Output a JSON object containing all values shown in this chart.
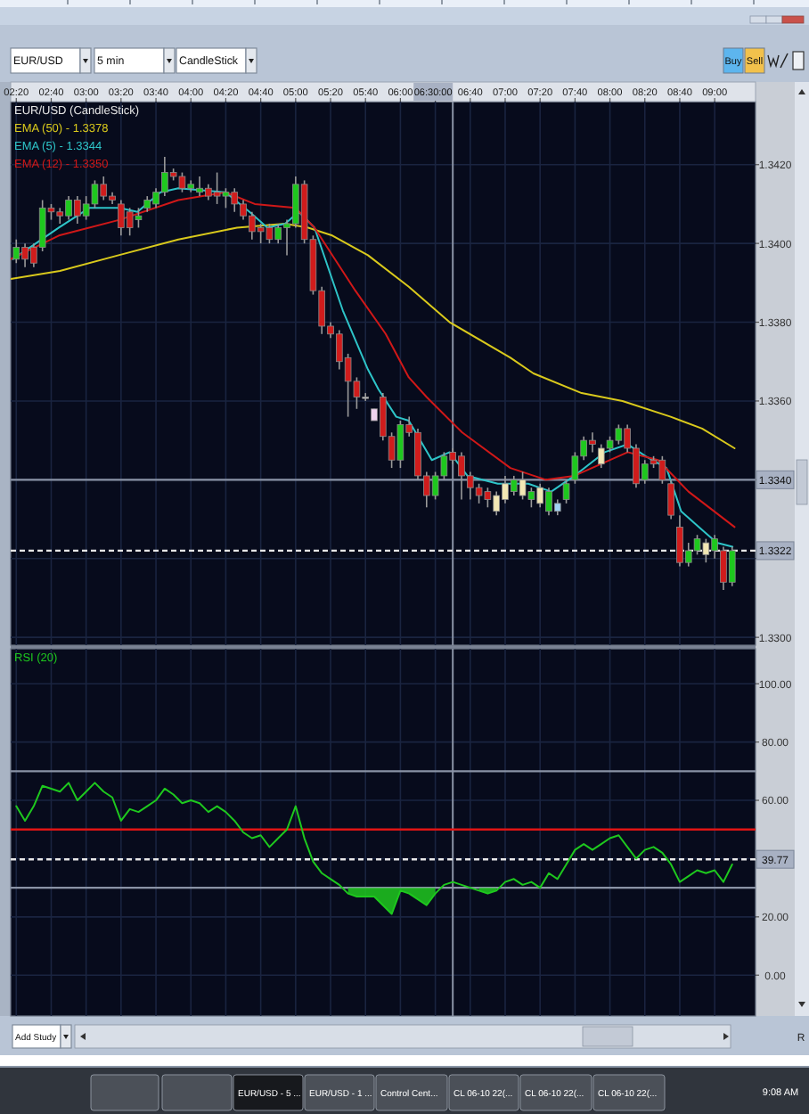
{
  "chart_data": [
    {
      "type": "candlestick",
      "legend_title": "EUR/USD (CandleStick)",
      "legend": "top left",
      "grid": true,
      "xlim": [
        2.28,
        9.39
      ],
      "ylim": [
        1.3298,
        1.3436
      ],
      "xticks": [
        {
          "value": 2.3333,
          "label": "02:20"
        },
        {
          "value": 2.6667,
          "label": "02:40"
        },
        {
          "value": 3,
          "label": "03:00"
        },
        {
          "value": 3.3333,
          "label": "03:20"
        },
        {
          "value": 3.6667,
          "label": "03:40"
        },
        {
          "value": 4,
          "label": "04:00"
        },
        {
          "value": 4.3333,
          "label": "04:20"
        },
        {
          "value": 4.6667,
          "label": "04:40"
        },
        {
          "value": 5,
          "label": "05:00"
        },
        {
          "value": 5.3333,
          "label": "05:20"
        },
        {
          "value": 5.6667,
          "label": "05:40"
        },
        {
          "value": 6,
          "label": "06:00"
        },
        {
          "value": 6.3333,
          "label": null
        },
        {
          "value": 6.6667,
          "label": "06:40"
        },
        {
          "value": 7,
          "label": "07:00"
        },
        {
          "value": 7.3333,
          "label": "07:20"
        },
        {
          "value": 7.6667,
          "label": "07:40"
        },
        {
          "value": 8,
          "label": "08:00"
        },
        {
          "value": 8.3333,
          "label": "08:20"
        },
        {
          "value": 8.6667,
          "label": "08:40"
        },
        {
          "value": 9,
          "label": "09:00"
        }
      ],
      "yticks": [
        {
          "value": 1.342,
          "label": "1.3420"
        },
        {
          "value": 1.34,
          "label": "1.3400"
        },
        {
          "value": 1.338,
          "label": "1.3380"
        },
        {
          "value": 1.336,
          "label": "1.3360"
        },
        {
          "value": 1.334,
          "label": null
        },
        {
          "value": 1.332,
          "label": null
        },
        {
          "value": 1.33,
          "label": "1.3300"
        }
      ],
      "x": [
        2.3333,
        2.4167,
        2.5,
        2.5833,
        2.6667,
        2.75,
        2.8333,
        2.9167,
        3,
        3.0833,
        3.1667,
        3.25,
        3.3333,
        3.4167,
        3.5,
        3.5833,
        3.6667,
        3.75,
        3.8333,
        3.9167,
        4,
        4.0833,
        4.1667,
        4.25,
        4.3333,
        4.4167,
        4.5,
        4.5833,
        4.6667,
        4.75,
        4.8333,
        4.9167,
        5,
        5.0833,
        5.1667,
        5.25,
        5.3333,
        5.4167,
        5.5,
        5.5833,
        5.6667,
        5.75,
        5.8333,
        5.9167,
        6,
        6.0833,
        6.1667,
        6.25,
        6.3333,
        6.4167,
        6.5,
        6.5833,
        6.6667,
        6.75,
        6.8333,
        6.9167,
        7,
        7.0833,
        7.1667,
        7.25,
        7.3333,
        7.4167,
        7.5,
        7.5833,
        7.6667,
        7.75,
        7.8333,
        7.9167,
        8,
        8.0833,
        8.1667,
        8.25,
        8.3333,
        8.4167,
        8.5,
        8.5833,
        8.6667,
        8.75,
        8.8333,
        8.9167,
        9,
        9.0833,
        9.1667
      ],
      "ohlc": [
        [
          1.3396,
          1.3401,
          1.3395,
          1.3399
        ],
        [
          1.3399,
          1.34,
          1.3394,
          1.3396
        ],
        [
          1.3399,
          1.34,
          1.3394,
          1.3395
        ],
        [
          1.3399,
          1.3411,
          1.3398,
          1.3409
        ],
        [
          1.3409,
          1.341,
          1.3406,
          1.3408
        ],
        [
          1.3408,
          1.3409,
          1.3405,
          1.3407
        ],
        [
          1.3407,
          1.3412,
          1.3406,
          1.3411
        ],
        [
          1.3411,
          1.3412,
          1.3405,
          1.3407
        ],
        [
          1.3407,
          1.3412,
          1.3406,
          1.341
        ],
        [
          1.341,
          1.3416,
          1.3409,
          1.3415
        ],
        [
          1.3415,
          1.3417,
          1.3411,
          1.3412
        ],
        [
          1.3412,
          1.3413,
          1.341,
          1.3411
        ],
        [
          1.341,
          1.3411,
          1.3402,
          1.3404
        ],
        [
          1.3408,
          1.3409,
          1.3402,
          1.3404
        ],
        [
          1.3406,
          1.3409,
          1.3404,
          1.3407
        ],
        [
          1.3409,
          1.3412,
          1.3408,
          1.3411
        ],
        [
          1.341,
          1.3414,
          1.3409,
          1.3413
        ],
        [
          1.3413,
          1.3422,
          1.3412,
          1.3418
        ],
        [
          1.3418,
          1.3419,
          1.3416,
          1.3417
        ],
        [
          1.3417,
          1.3418,
          1.3413,
          1.3414
        ],
        [
          1.3414,
          1.3416,
          1.3413,
          1.3415
        ],
        [
          1.3413,
          1.3417,
          1.3412,
          1.3414
        ],
        [
          1.3414,
          1.3415,
          1.3411,
          1.3412
        ],
        [
          1.3413,
          1.3418,
          1.341,
          1.3412
        ],
        [
          1.3412,
          1.3414,
          1.3409,
          1.3413
        ],
        [
          1.3413,
          1.3414,
          1.3408,
          1.341
        ],
        [
          1.341,
          1.3411,
          1.3406,
          1.3407
        ],
        [
          1.3407,
          1.3408,
          1.3401,
          1.3403
        ],
        [
          1.3404,
          1.3405,
          1.34,
          1.3403
        ],
        [
          1.3404,
          1.3405,
          1.34,
          1.3401
        ],
        [
          1.3401,
          1.3405,
          1.34,
          1.3404
        ],
        [
          1.3404,
          1.3406,
          1.3397,
          1.3405
        ],
        [
          1.3405,
          1.3417,
          1.3404,
          1.3415
        ],
        [
          1.3415,
          1.3416,
          1.34,
          1.3401
        ],
        [
          1.3401,
          1.3402,
          1.3387,
          1.3388
        ],
        [
          1.3388,
          1.3389,
          1.3377,
          1.3379
        ],
        [
          1.3379,
          1.338,
          1.3376,
          1.3377
        ],
        [
          1.3377,
          1.3378,
          1.3368,
          1.337
        ],
        [
          1.3371,
          1.3372,
          1.3356,
          1.3365
        ],
        [
          1.3365,
          1.3366,
          1.3358,
          1.3361
        ],
        [
          1.3361,
          1.3362,
          1.336,
          1.3361
        ],
        [
          1.3358,
          1.3358,
          1.3355,
          1.3355
        ],
        [
          1.3361,
          1.3362,
          1.335,
          1.3351
        ],
        [
          1.3351,
          1.3352,
          1.3343,
          1.3345
        ],
        [
          1.3345,
          1.3355,
          1.3343,
          1.3354
        ],
        [
          1.3354,
          1.3356,
          1.3351,
          1.3352
        ],
        [
          1.3352,
          1.3353,
          1.334,
          1.3341
        ],
        [
          1.3341,
          1.3342,
          1.3333,
          1.3336
        ],
        [
          1.3336,
          1.3342,
          1.3335,
          1.3341
        ],
        [
          1.3341,
          1.3347,
          1.334,
          1.3346
        ],
        [
          1.3347,
          1.3348,
          1.3344,
          1.3345
        ],
        [
          1.3346,
          1.3347,
          1.3335,
          1.3341
        ],
        [
          1.3341,
          1.3342,
          1.3335,
          1.3338
        ],
        [
          1.3338,
          1.3339,
          1.3334,
          1.3336
        ],
        [
          1.3337,
          1.3338,
          1.3333,
          1.3335
        ],
        [
          1.3332,
          1.3337,
          1.3331,
          1.3336
        ],
        [
          1.3335,
          1.3341,
          1.3334,
          1.3339
        ],
        [
          1.3337,
          1.3341,
          1.3336,
          1.334
        ],
        [
          1.334,
          1.3342,
          1.3335,
          1.3336
        ],
        [
          1.3335,
          1.3338,
          1.3333,
          1.3337
        ],
        [
          1.3338,
          1.3339,
          1.3333,
          1.3334
        ],
        [
          1.3332,
          1.3338,
          1.3331,
          1.3337
        ],
        [
          1.3334,
          1.3335,
          1.3331,
          1.3332
        ],
        [
          1.3335,
          1.334,
          1.3334,
          1.3339
        ],
        [
          1.334,
          1.3347,
          1.3339,
          1.3346
        ],
        [
          1.3346,
          1.3351,
          1.3345,
          1.335
        ],
        [
          1.335,
          1.3352,
          1.3347,
          1.3349
        ],
        [
          1.3348,
          1.3349,
          1.3343,
          1.3344
        ],
        [
          1.3348,
          1.3351,
          1.3347,
          1.335
        ],
        [
          1.335,
          1.3354,
          1.3349,
          1.3353
        ],
        [
          1.3353,
          1.3354,
          1.3347,
          1.3348
        ],
        [
          1.3348,
          1.3349,
          1.3338,
          1.3339
        ],
        [
          1.334,
          1.3345,
          1.3339,
          1.3344
        ],
        [
          1.3345,
          1.3346,
          1.3343,
          1.3344
        ],
        [
          1.3345,
          1.3346,
          1.3339,
          1.334
        ],
        [
          1.3339,
          1.334,
          1.333,
          1.3331
        ],
        [
          1.3328,
          1.3331,
          1.3318,
          1.3319
        ],
        [
          1.3319,
          1.3324,
          1.3318,
          1.3322
        ],
        [
          1.3322,
          1.3326,
          1.3321,
          1.3325
        ],
        [
          1.3324,
          1.3325,
          1.3319,
          1.3321
        ],
        [
          1.3322,
          1.3326,
          1.332,
          1.3325
        ],
        [
          1.3322,
          1.3323,
          1.3312,
          1.3314
        ],
        [
          1.3314,
          1.3323,
          1.3313,
          1.3322
        ]
      ],
      "colors": [
        "#1ec81e",
        "#d01c1c",
        "#d01c1c",
        "#1ec81e",
        "#d01c1c",
        "#d01c1c",
        "#1ec81e",
        "#d01c1c",
        "#1ec81e",
        "#1ec81e",
        "#d01c1c",
        "#d01c1c",
        "#d01c1c",
        "#d01c1c",
        "#1ec81e",
        "#1ec81e",
        "#1ec81e",
        "#1ec81e",
        "#d01c1c",
        "#d01c1c",
        "#1ec81e",
        "#1ec81e",
        "#d01c1c",
        "#d01c1c",
        "#1ec81e",
        "#d01c1c",
        "#d01c1c",
        "#d01c1c",
        "#d01c1c",
        "#d01c1c",
        "#1ec81e",
        "#1ec81e",
        "#1ec81e",
        "#d01c1c",
        "#d01c1c",
        "#d01c1c",
        "#d01c1c",
        "#d01c1c",
        "#d01c1c",
        "#d01c1c",
        "#c8c8c8",
        "#f0d4ee",
        "#d01c1c",
        "#d01c1c",
        "#1ec81e",
        "#d01c1c",
        "#d01c1c",
        "#d01c1c",
        "#1ec81e",
        "#1ec81e",
        "#d01c1c",
        "#d01c1c",
        "#d01c1c",
        "#d01c1c",
        "#d01c1c",
        "#f2e7b4",
        "#f2e7b4",
        "#1ec81e",
        "#f2e7b4",
        "#1ec81e",
        "#f2e7b4",
        "#1ec81e",
        "#9fd3f5",
        "#1ec81e",
        "#1ec81e",
        "#1ec81e",
        "#d01c1c",
        "#f2e7b4",
        "#1ec81e",
        "#1ec81e",
        "#d01c1c",
        "#d01c1c",
        "#1ec81e",
        "#d01c1c",
        "#d01c1c",
        "#d01c1c",
        "#d01c1c",
        "#1ec81e",
        "#1ec81e",
        "#f2e7b4",
        "#1ec81e",
        "#d01c1c",
        "#1ec81e"
      ],
      "series": [
        {
          "type": "line",
          "name": "EMA (50) - 1.3378",
          "color": "#d9c91c",
          "x": [
            2.28,
            2.75,
            3.31,
            3.88,
            4.44,
            4.9,
            5.12,
            5.35,
            5.69,
            6.08,
            6.47,
            7.05,
            7.27,
            7.73,
            8.12,
            8.58,
            8.88,
            9.19
          ],
          "values": [
            1.3391,
            1.3393,
            1.3397,
            1.3401,
            1.3404,
            1.3405,
            1.3404,
            1.3402,
            1.3397,
            1.3389,
            1.338,
            1.3371,
            1.3367,
            1.3362,
            1.336,
            1.3356,
            1.3353,
            1.3348
          ]
        },
        {
          "type": "line",
          "name": "EMA (5) - 1.3344",
          "color": "#2ec4c8",
          "x": [
            2.3,
            2.74,
            3.03,
            3.32,
            3.49,
            3.71,
            3.88,
            4.33,
            4.56,
            4.73,
            4.9,
            5.03,
            5.18,
            5.45,
            5.69,
            5.79,
            5.96,
            6.08,
            6.3,
            6.47,
            6.64,
            6.93,
            7.22,
            7.44,
            7.66,
            7.95,
            8.17,
            8.34,
            8.54,
            8.68,
            8.85,
            9.02,
            9.17
          ],
          "values": [
            1.3396,
            1.3404,
            1.3409,
            1.3409,
            1.3408,
            1.3413,
            1.3414,
            1.3413,
            1.3408,
            1.3404,
            1.3405,
            1.3408,
            1.3404,
            1.3383,
            1.3368,
            1.3363,
            1.3356,
            1.3355,
            1.3345,
            1.3347,
            1.3341,
            1.3339,
            1.3339,
            1.3337,
            1.3341,
            1.3347,
            1.3349,
            1.3346,
            1.3343,
            1.3332,
            1.3328,
            1.3324,
            1.3323
          ]
        },
        {
          "type": "line",
          "name": "EMA (12) - 1.3350",
          "color": "#d01818",
          "x": [
            2.28,
            2.74,
            3.32,
            3.88,
            4.33,
            4.61,
            5,
            5.18,
            5.57,
            5.86,
            6.08,
            6.25,
            6.59,
            7.05,
            7.39,
            7.66,
            8.17,
            8.46,
            8.75,
            9.19
          ],
          "values": [
            1.3396,
            1.3402,
            1.3406,
            1.3411,
            1.3413,
            1.341,
            1.3409,
            1.3404,
            1.3388,
            1.3377,
            1.3366,
            1.3361,
            1.3352,
            1.3343,
            1.334,
            1.3341,
            1.3347,
            1.3345,
            1.3337,
            1.3328
          ]
        }
      ],
      "ref_lines": [
        {
          "axis": "x",
          "value": 6.5,
          "label": "06:30:00",
          "color": "#8a93a6"
        },
        {
          "axis": "y",
          "value": 1.334,
          "label": "1.3340",
          "color": "#8a93a6"
        },
        {
          "axis": "y",
          "value": 1.3322,
          "label": "1.3322",
          "color": "#e6e6e6",
          "line_style": "dashed"
        }
      ]
    },
    {
      "type": "line",
      "legend": "top left",
      "grid": true,
      "tick_labels": "y",
      "xlim": [
        2.28,
        9.39
      ],
      "ylim": [
        -14,
        112
      ],
      "xticks": [
        {
          "value": 2.3333,
          "label": null
        },
        {
          "value": 2.6667,
          "label": null
        },
        {
          "value": 3,
          "label": null
        },
        {
          "value": 3.3333,
          "label": null
        },
        {
          "value": 3.6667,
          "label": null
        },
        {
          "value": 4,
          "label": null
        },
        {
          "value": 4.3333,
          "label": null
        },
        {
          "value": 4.6667,
          "label": null
        },
        {
          "value": 5,
          "label": null
        },
        {
          "value": 5.3333,
          "label": null
        },
        {
          "value": 5.6667,
          "label": null
        },
        {
          "value": 6,
          "label": null
        },
        {
          "value": 6.3333,
          "label": null
        },
        {
          "value": 6.6667,
          "label": null
        },
        {
          "value": 7,
          "label": null
        },
        {
          "value": 7.3333,
          "label": null
        },
        {
          "value": 7.6667,
          "label": null
        },
        {
          "value": 8,
          "label": null
        },
        {
          "value": 8.3333,
          "label": null
        },
        {
          "value": 8.6667,
          "label": null
        },
        {
          "value": 9,
          "label": null
        }
      ],
      "yticks": [
        {
          "value": 100,
          "label": "100.00"
        },
        {
          "value": 80,
          "label": "80.00"
        },
        {
          "value": 60,
          "label": "60.00"
        },
        {
          "value": 40,
          "label": null
        },
        {
          "value": 20,
          "label": "20.00"
        },
        {
          "value": 0,
          "label": "0.00"
        }
      ],
      "x": [
        2.3333,
        2.4167,
        2.5,
        2.5833,
        2.6667,
        2.75,
        2.8333,
        2.9167,
        3,
        3.0833,
        3.1667,
        3.25,
        3.3333,
        3.4167,
        3.5,
        3.5833,
        3.6667,
        3.75,
        3.8333,
        3.9167,
        4,
        4.0833,
        4.1667,
        4.25,
        4.3333,
        4.4167,
        4.5,
        4.5833,
        4.6667,
        4.75,
        4.8333,
        4.9167,
        5,
        5.0833,
        5.1667,
        5.25,
        5.3333,
        5.4167,
        5.5,
        5.5833,
        5.6667,
        5.75,
        5.8333,
        5.9167,
        6,
        6.0833,
        6.1667,
        6.25,
        6.3333,
        6.4167,
        6.5,
        6.5833,
        6.6667,
        6.75,
        6.8333,
        6.9167,
        7,
        7.0833,
        7.1667,
        7.25,
        7.3333,
        7.4167,
        7.5,
        7.5833,
        7.6667,
        7.75,
        7.8333,
        7.9167,
        8,
        8.0833,
        8.1667,
        8.25,
        8.3333,
        8.4167,
        8.5,
        8.5833,
        8.6667,
        8.75,
        8.8333,
        8.9167,
        9,
        9.0833,
        9.1667
      ],
      "series": [
        {
          "name": "RSI (20)",
          "color": "#1ec81e",
          "values": [
            58,
            53,
            58,
            65,
            64,
            63,
            66,
            60,
            63,
            66,
            63,
            61,
            53,
            57,
            56,
            58,
            60,
            64,
            62,
            59,
            60,
            59,
            56,
            58,
            56,
            53,
            49,
            47,
            48,
            44,
            47,
            50,
            58,
            47,
            39,
            35,
            33,
            31,
            28,
            27,
            27,
            27,
            24,
            21,
            29,
            28,
            26,
            24,
            28,
            31,
            32,
            31,
            30,
            29,
            28,
            29,
            32,
            33,
            31,
            32,
            30,
            35,
            33,
            38,
            43,
            45,
            43,
            45,
            47,
            48,
            44,
            40,
            43,
            44,
            42,
            38,
            32,
            34,
            36,
            35,
            36,
            32,
            38
          ],
          "lower": [
            null,
            null,
            null,
            null,
            null,
            null,
            null,
            null,
            null,
            null,
            null,
            null,
            null,
            null,
            null,
            null,
            null,
            null,
            null,
            null,
            null,
            null,
            null,
            null,
            null,
            null,
            null,
            null,
            null,
            null,
            null,
            null,
            null,
            null,
            null,
            null,
            null,
            null,
            28,
            27,
            27,
            27,
            24,
            21,
            29,
            28,
            26,
            24,
            28,
            null,
            null,
            null,
            null,
            29,
            28,
            29,
            null,
            null,
            null,
            null,
            null,
            null,
            null,
            null,
            null,
            null,
            null,
            null,
            null,
            null,
            null,
            null,
            null,
            null,
            null,
            null,
            null,
            null,
            null,
            null,
            null,
            null,
            null
          ],
          "upper": [
            null,
            null,
            null,
            null,
            null,
            null,
            null,
            null,
            null,
            null,
            null,
            null,
            null,
            null,
            null,
            null,
            null,
            null,
            null,
            null,
            null,
            null,
            null,
            null,
            null,
            null,
            null,
            null,
            null,
            null,
            null,
            null,
            null,
            null,
            null,
            null,
            null,
            null,
            30,
            30,
            30,
            30,
            30,
            30,
            30,
            30,
            30,
            30,
            30,
            null,
            null,
            null,
            null,
            30,
            30,
            30,
            null,
            null,
            null,
            null,
            null,
            null,
            null,
            null,
            null,
            null,
            null,
            null,
            null,
            null,
            null,
            null,
            null,
            null,
            null,
            null,
            null,
            null,
            null,
            null,
            null,
            null,
            null
          ]
        }
      ],
      "ref_lines": [
        {
          "axis": "x",
          "value": 6.5,
          "color": "#8a93a6"
        },
        {
          "axis": "y",
          "value": 70,
          "color": "#8a93a6"
        },
        {
          "axis": "y",
          "value": 30,
          "color": "#8a93a6"
        },
        {
          "axis": "y",
          "value": 50,
          "color": "#e01414"
        },
        {
          "axis": "y",
          "value": 39.77,
          "label": "39.77",
          "color": "#e6e6e6",
          "line_style": "dashed"
        }
      ]
    },
    {
      "type": "other",
      "annotations": [
        "EUR/USD",
        "5 min",
        "CandleStick",
        "Buy",
        "Sell",
        "Add Study",
        "R",
        "EUR/USD - 5 ...",
        "EUR/USD - 1 ...",
        "Control Cent...",
        "CL 06-10 22(...",
        "CL 06-10 22(...",
        "CL 06-10 22(...",
        "9:08 AM"
      ]
    }
  ]
}
